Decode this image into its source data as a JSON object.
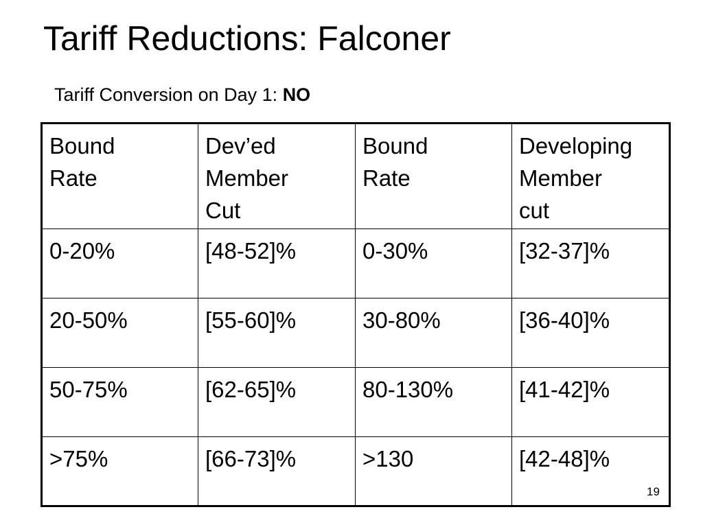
{
  "title": "Tariff Reductions: Falconer",
  "subtitle": {
    "label": "Tariff Conversion on Day 1:",
    "answer": "NO"
  },
  "table": {
    "headers": [
      [
        "Bound",
        "Rate"
      ],
      [
        "Dev’ed",
        "Member",
        "Cut"
      ],
      [
        "Bound",
        "Rate"
      ],
      [
        "Developing",
        "Member",
        "cut"
      ]
    ],
    "rows": [
      [
        "0-20%",
        "[48-52]%",
        "0-30%",
        "[32-37]%"
      ],
      [
        "20-50%",
        "[55-60]%",
        "30-80%",
        "[36-40]%"
      ],
      [
        "50-75%",
        "[62-65]%",
        "80-130%",
        "[41-42]%"
      ],
      [
        ">75%",
        "[66-73]%",
        ">130",
        "[42-48]%"
      ]
    ]
  },
  "page_number": "19"
}
